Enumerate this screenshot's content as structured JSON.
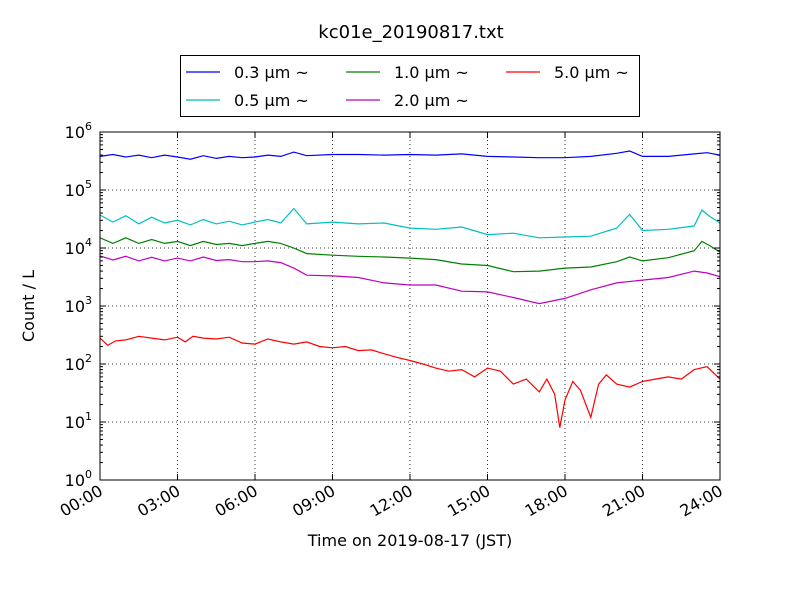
{
  "chart_data": {
    "type": "line",
    "title": "kc01e_20190817.txt",
    "xlabel": "Time on 2019-08-17 (JST)",
    "ylabel": "Count / L",
    "xlim": [
      0,
      24
    ],
    "ylim": [
      1,
      1000000
    ],
    "yscale": "log",
    "grid": true,
    "legend_placement": "top-center-outside",
    "x_ticks": [
      {
        "value": 0,
        "label": "00:00"
      },
      {
        "value": 3,
        "label": "03:00"
      },
      {
        "value": 6,
        "label": "06:00"
      },
      {
        "value": 9,
        "label": "09:00"
      },
      {
        "value": 12,
        "label": "12:00"
      },
      {
        "value": 15,
        "label": "15:00"
      },
      {
        "value": 18,
        "label": "18:00"
      },
      {
        "value": 21,
        "label": "21:00"
      },
      {
        "value": 24,
        "label": "24:00"
      }
    ],
    "y_ticks": [
      {
        "value": 1,
        "base": "10",
        "exp": "0"
      },
      {
        "value": 10,
        "base": "10",
        "exp": "1"
      },
      {
        "value": 100,
        "base": "10",
        "exp": "2"
      },
      {
        "value": 1000,
        "base": "10",
        "exp": "3"
      },
      {
        "value": 10000,
        "base": "10",
        "exp": "4"
      },
      {
        "value": 100000,
        "base": "10",
        "exp": "5"
      },
      {
        "value": 1000000,
        "base": "10",
        "exp": "6"
      }
    ],
    "series": [
      {
        "name": "0.3 μm ~",
        "color": "#0000ff",
        "x": [
          0,
          0.5,
          1,
          1.5,
          2,
          2.5,
          3,
          3.5,
          4,
          4.5,
          5,
          5.5,
          6,
          6.5,
          7,
          7.5,
          8,
          9,
          10,
          11,
          12,
          13,
          14,
          15,
          16,
          17,
          18,
          19,
          20,
          20.5,
          21,
          22,
          23,
          23.5,
          24
        ],
        "y": [
          380000,
          410000,
          370000,
          400000,
          360000,
          400000,
          370000,
          340000,
          390000,
          350000,
          380000,
          360000,
          370000,
          400000,
          380000,
          450000,
          390000,
          410000,
          410000,
          400000,
          410000,
          400000,
          420000,
          380000,
          370000,
          360000,
          360000,
          380000,
          430000,
          470000,
          380000,
          380000,
          420000,
          440000,
          400000
        ]
      },
      {
        "name": "0.5 μm ~",
        "color": "#00bfbf",
        "x": [
          0,
          0.5,
          1,
          1.5,
          2,
          2.5,
          3,
          3.5,
          4,
          4.5,
          5,
          5.5,
          6,
          6.5,
          7,
          7.5,
          8,
          9,
          10,
          11,
          12,
          13,
          14,
          15,
          16,
          17,
          18,
          19,
          20,
          20.5,
          21,
          22,
          23,
          23.3,
          23.6,
          24
        ],
        "y": [
          37000,
          28000,
          36000,
          26000,
          34000,
          27000,
          30000,
          25000,
          31000,
          26000,
          29000,
          25000,
          28000,
          31000,
          27000,
          48000,
          26000,
          28000,
          26000,
          27000,
          22000,
          21000,
          23000,
          17000,
          18000,
          15000,
          15500,
          16000,
          22000,
          38000,
          20000,
          21000,
          24000,
          45000,
          35000,
          27000
        ]
      },
      {
        "name": "1.0 μm ~",
        "color": "#008000",
        "x": [
          0,
          0.5,
          1,
          1.5,
          2,
          2.5,
          3,
          3.5,
          4,
          4.5,
          5,
          5.5,
          6,
          6.5,
          7,
          7.5,
          8,
          9,
          10,
          11,
          12,
          13,
          14,
          15,
          16,
          17,
          18,
          19,
          20,
          20.5,
          21,
          22,
          23,
          23.3,
          23.6,
          24
        ],
        "y": [
          15000,
          12000,
          15000,
          12000,
          14000,
          12000,
          13000,
          11000,
          13000,
          11500,
          12000,
          11000,
          12000,
          13000,
          12000,
          10000,
          8000,
          7500,
          7200,
          7000,
          6700,
          6300,
          5300,
          5000,
          3900,
          4000,
          4500,
          4700,
          5800,
          7000,
          6000,
          6800,
          9000,
          13000,
          11000,
          8500
        ]
      },
      {
        "name": "2.0 μm ~",
        "color": "#bf00bf",
        "x": [
          0,
          0.5,
          1,
          1.5,
          2,
          2.5,
          3,
          3.5,
          4,
          4.5,
          5,
          5.5,
          6,
          6.5,
          7,
          7.5,
          8,
          9,
          10,
          11,
          12,
          13,
          14,
          15,
          16,
          17,
          18,
          19,
          20,
          21,
          22,
          23,
          23.5,
          24
        ],
        "y": [
          7300,
          6200,
          7200,
          6000,
          6900,
          6000,
          6700,
          6000,
          7000,
          6100,
          6300,
          5800,
          5800,
          6000,
          5600,
          4500,
          3400,
          3300,
          3100,
          2500,
          2300,
          2300,
          1800,
          1750,
          1400,
          1100,
          1350,
          1900,
          2500,
          2800,
          3100,
          4000,
          3700,
          3200
        ]
      },
      {
        "name": "5.0 μm ~",
        "color": "#ff0000",
        "x": [
          0,
          0.3,
          0.6,
          1,
          1.5,
          2,
          2.5,
          3,
          3.3,
          3.6,
          4,
          4.5,
          5,
          5.5,
          6,
          6.5,
          7,
          7.5,
          8,
          8.5,
          9,
          9.5,
          10,
          10.5,
          11,
          11.5,
          12,
          12.5,
          13,
          13.5,
          14,
          14.5,
          15,
          15.5,
          16,
          16.5,
          17,
          17.3,
          17.6,
          17.8,
          18,
          18.3,
          18.6,
          19,
          19.3,
          19.6,
          20,
          20.5,
          21,
          21.5,
          22,
          22.5,
          23,
          23.5,
          24
        ],
        "y": [
          280,
          210,
          250,
          260,
          300,
          280,
          260,
          290,
          240,
          300,
          280,
          270,
          290,
          230,
          220,
          270,
          240,
          220,
          240,
          200,
          190,
          200,
          170,
          175,
          150,
          130,
          115,
          100,
          85,
          75,
          80,
          60,
          85,
          75,
          45,
          55,
          33,
          55,
          30,
          8,
          24,
          50,
          35,
          12,
          45,
          65,
          45,
          40,
          50,
          55,
          60,
          55,
          80,
          90,
          55
        ]
      }
    ]
  }
}
